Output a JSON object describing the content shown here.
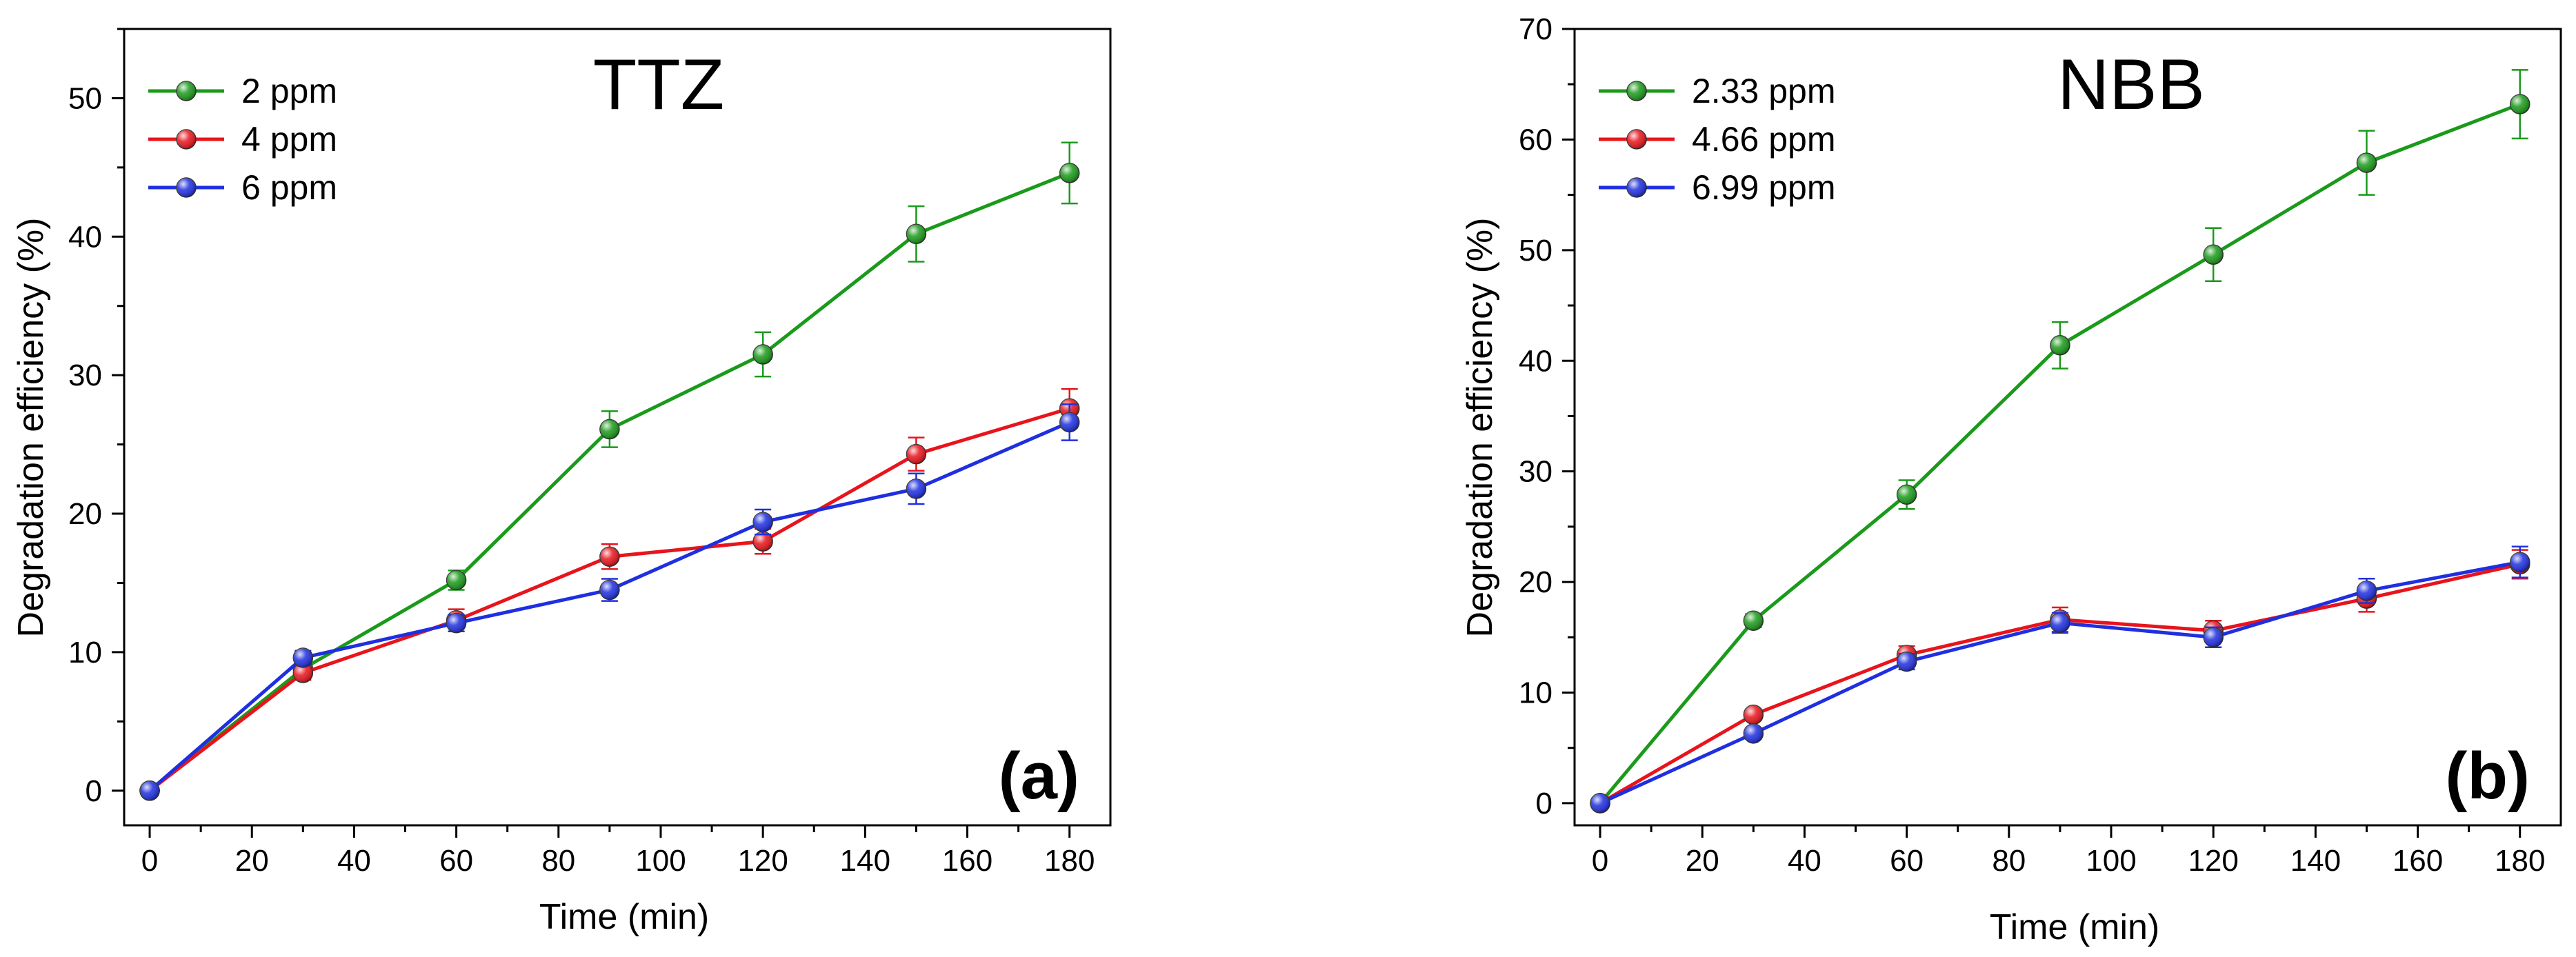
{
  "chart_data": [
    {
      "type": "line",
      "title": "TTZ",
      "panel_label": "(a)",
      "xlabel": "Time (min)",
      "ylabel": "Degradation efficiency (%)",
      "xlim": [
        -5,
        188
      ],
      "ylim": [
        -2.5,
        55
      ],
      "xticks": [
        0,
        20,
        40,
        60,
        80,
        100,
        120,
        140,
        160,
        180
      ],
      "yticks": [
        0,
        10,
        20,
        30,
        40,
        50
      ],
      "legend_position": "top-left",
      "x": [
        0,
        30,
        60,
        90,
        120,
        150,
        180
      ],
      "series": [
        {
          "name": "2 ppm",
          "color": "#1a9a1a",
          "values": [
            0,
            8.8,
            15.2,
            26.1,
            31.5,
            40.2,
            44.6
          ],
          "errors": [
            0.3,
            0.6,
            0.7,
            1.3,
            1.6,
            2.0,
            2.2
          ]
        },
        {
          "name": "4 ppm",
          "color": "#e8141c",
          "values": [
            0,
            8.5,
            12.3,
            16.9,
            18.0,
            24.3,
            27.6
          ],
          "errors": [
            0.3,
            0.5,
            0.8,
            0.9,
            0.9,
            1.2,
            1.4
          ]
        },
        {
          "name": "6 ppm",
          "color": "#1f2fe0",
          "values": [
            0,
            9.6,
            12.1,
            14.5,
            19.4,
            21.8,
            26.6
          ],
          "errors": [
            0.3,
            0.5,
            0.6,
            0.8,
            0.9,
            1.1,
            1.3
          ]
        }
      ]
    },
    {
      "type": "line",
      "title": "NBB",
      "panel_label": "(b)",
      "xlabel": "Time (min)",
      "ylabel": "Degradation efficiency (%)",
      "xlim": [
        -5,
        188
      ],
      "ylim": [
        -2,
        70
      ],
      "xticks": [
        0,
        20,
        40,
        60,
        80,
        100,
        120,
        140,
        160,
        180
      ],
      "yticks": [
        0,
        10,
        20,
        30,
        40,
        50,
        60,
        70
      ],
      "legend_position": "top-left",
      "x": [
        0,
        30,
        60,
        90,
        120,
        150,
        180
      ],
      "series": [
        {
          "name": "2.33 ppm",
          "color": "#1a9a1a",
          "values": [
            0,
            16.5,
            27.9,
            41.4,
            49.6,
            57.9,
            63.2
          ],
          "errors": [
            0.3,
            0.6,
            1.3,
            2.1,
            2.4,
            2.9,
            3.1
          ]
        },
        {
          "name": "4.66 ppm",
          "color": "#e8141c",
          "values": [
            0,
            8.0,
            13.4,
            16.6,
            15.6,
            18.5,
            21.6
          ],
          "errors": [
            0.3,
            0.5,
            0.8,
            1.1,
            0.9,
            1.2,
            1.3
          ]
        },
        {
          "name": "6.99 ppm",
          "color": "#1f2fe0",
          "values": [
            0,
            6.3,
            12.8,
            16.3,
            15.0,
            19.2,
            21.8
          ],
          "errors": [
            0.3,
            0.5,
            0.7,
            0.9,
            0.9,
            1.1,
            1.4
          ]
        }
      ]
    }
  ]
}
